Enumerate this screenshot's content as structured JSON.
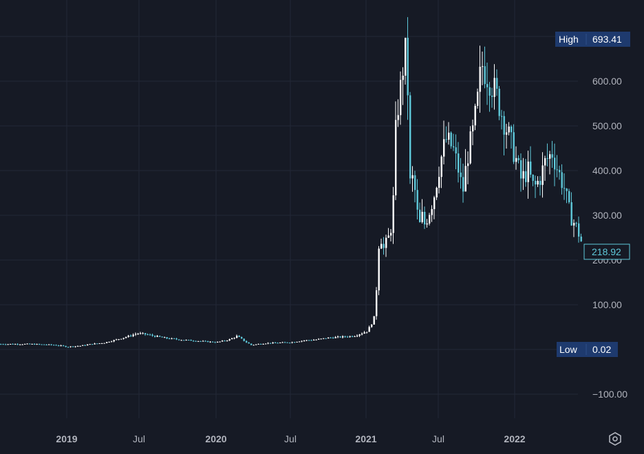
{
  "chart_data": {
    "type": "candlestick",
    "y_ticks": [
      "600.00",
      "500.00",
      "400.00",
      "300.00",
      "200.00",
      "100.00",
      "−100.00"
    ],
    "x_ticks": [
      "2019",
      "Jul",
      "2020",
      "Jul",
      "2021",
      "Jul",
      "2022"
    ],
    "ylim": [
      -200,
      750
    ],
    "grid": true,
    "colors": {
      "up": "#ffffff",
      "down": "#5fc9da",
      "grid": "#232836",
      "background": "#161a25",
      "badge": "#1e3a6e"
    },
    "high": {
      "label": "High",
      "value": "693.41"
    },
    "low": {
      "label": "Low",
      "value": "0.02"
    },
    "last_price": "218.92",
    "series_shape": [
      [
        "2018-10-01",
        12
      ],
      [
        "2018-12-01",
        10
      ],
      [
        "2019-01-01",
        6
      ],
      [
        "2019-02-01",
        8
      ],
      [
        "2019-03-01",
        12
      ],
      [
        "2019-04-01",
        15
      ],
      [
        "2019-05-01",
        22
      ],
      [
        "2019-06-01",
        30
      ],
      [
        "2019-06-20",
        36
      ],
      [
        "2019-07-10",
        34
      ],
      [
        "2019-08-01",
        30
      ],
      [
        "2019-09-01",
        25
      ],
      [
        "2019-10-01",
        22
      ],
      [
        "2019-11-01",
        20
      ],
      [
        "2019-12-01",
        18
      ],
      [
        "2020-01-01",
        16
      ],
      [
        "2020-02-01",
        22
      ],
      [
        "2020-02-20",
        30
      ],
      [
        "2020-03-10",
        18
      ],
      [
        "2020-03-25",
        10
      ],
      [
        "2020-05-01",
        14
      ],
      [
        "2020-07-01",
        16
      ],
      [
        "2020-08-01",
        20
      ],
      [
        "2020-09-01",
        22
      ],
      [
        "2020-10-01",
        26
      ],
      [
        "2020-11-01",
        28
      ],
      [
        "2020-12-01",
        30
      ],
      [
        "2020-12-20",
        36
      ],
      [
        "2021-01-05",
        42
      ],
      [
        "2021-01-20",
        70
      ],
      [
        "2021-01-28",
        160
      ],
      [
        "2021-02-03",
        280
      ],
      [
        "2021-02-10",
        220
      ],
      [
        "2021-02-20",
        240
      ],
      [
        "2021-03-01",
        260
      ],
      [
        "2021-03-08",
        330
      ],
      [
        "2021-03-15",
        510
      ],
      [
        "2021-03-22",
        560
      ],
      [
        "2021-03-29",
        600
      ],
      [
        "2021-04-05",
        680
      ],
      [
        "2021-04-12",
        600
      ],
      [
        "2021-04-19",
        350
      ],
      [
        "2021-04-26",
        390
      ],
      [
        "2021-05-03",
        330
      ],
      [
        "2021-05-10",
        270
      ],
      [
        "2021-05-17",
        300
      ],
      [
        "2021-05-24",
        280
      ],
      [
        "2021-06-01",
        300
      ],
      [
        "2021-06-15",
        340
      ],
      [
        "2021-07-01",
        420
      ],
      [
        "2021-07-15",
        470
      ],
      [
        "2021-08-01",
        450
      ],
      [
        "2021-08-15",
        400
      ],
      [
        "2021-08-25",
        350
      ],
      [
        "2021-09-05",
        430
      ],
      [
        "2021-09-20",
        490
      ],
      [
        "2021-10-01",
        560
      ],
      [
        "2021-10-10",
        640
      ],
      [
        "2021-10-20",
        620
      ],
      [
        "2021-11-01",
        600
      ],
      [
        "2021-11-15",
        570
      ],
      [
        "2021-12-01",
        520
      ],
      [
        "2021-12-15",
        480
      ],
      [
        "2022-01-01",
        430
      ],
      [
        "2022-01-15",
        380
      ],
      [
        "2022-02-01",
        400
      ],
      [
        "2022-02-15",
        360
      ],
      [
        "2022-03-01",
        380
      ],
      [
        "2022-03-15",
        420
      ],
      [
        "2022-04-01",
        440
      ],
      [
        "2022-04-15",
        400
      ],
      [
        "2022-05-01",
        360
      ],
      [
        "2022-05-15",
        300
      ],
      [
        "2022-06-01",
        270
      ],
      [
        "2022-06-15",
        230
      ],
      [
        "2022-06-25",
        219
      ]
    ]
  }
}
